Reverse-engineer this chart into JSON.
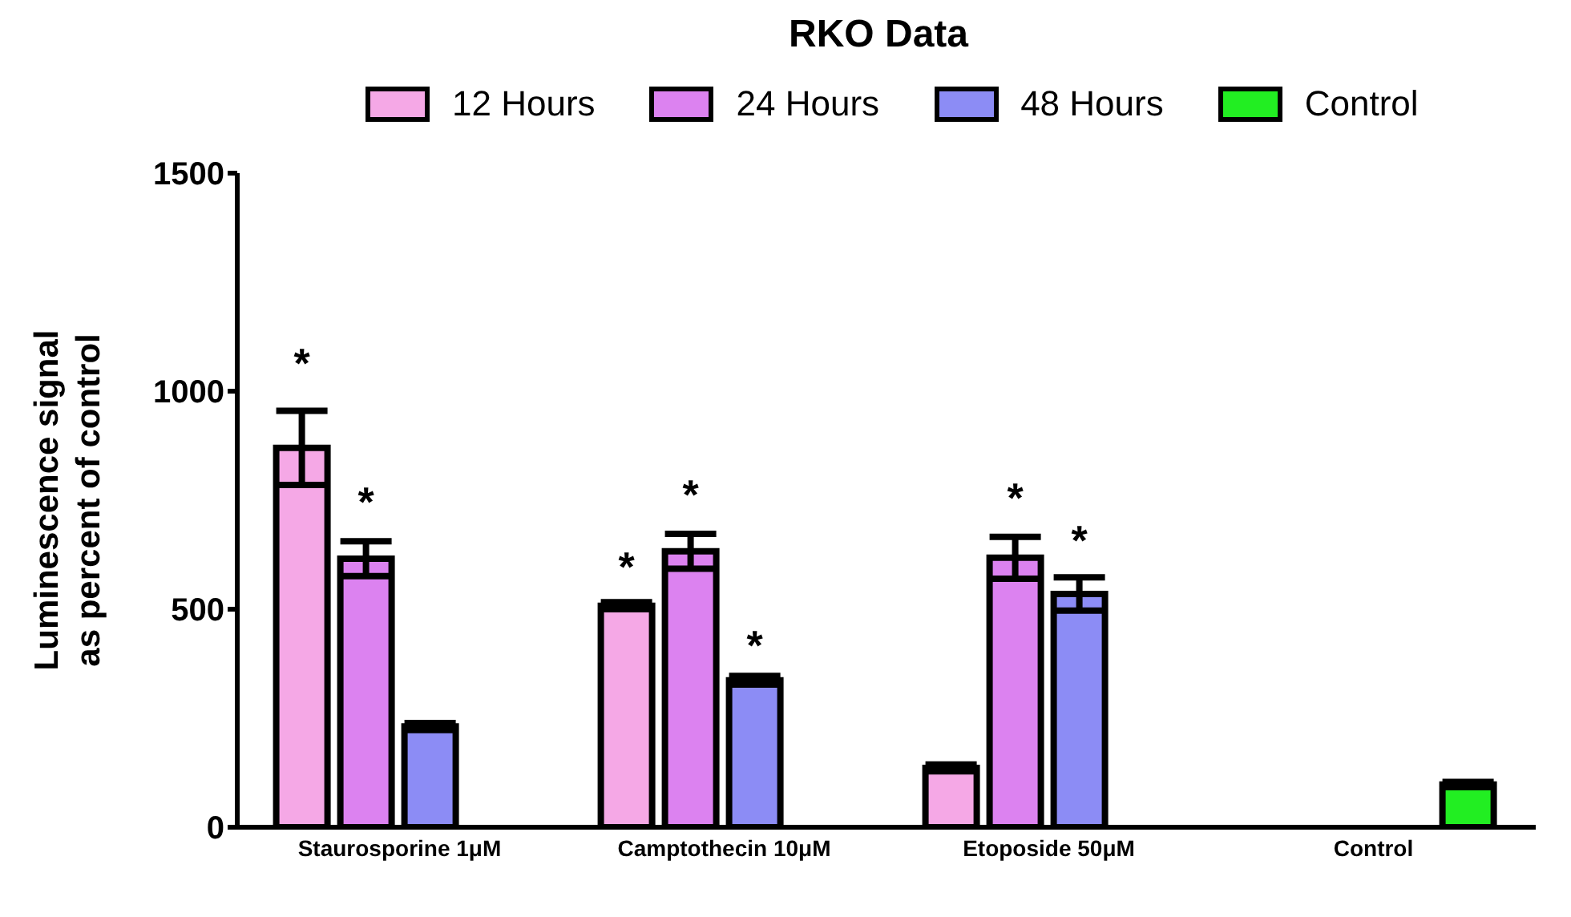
{
  "chart_data": {
    "type": "bar",
    "title": "RKO Data",
    "ylabel": "Luminescence signal as percent of control",
    "categories": [
      "Staurosporine 1μM",
      "Camptothecin 10μM",
      "Etoposide 50μM",
      "Control"
    ],
    "series": [
      {
        "name": "12 Hours",
        "color": "#f5a8e6",
        "values": [
          870,
          508,
          136,
          null
        ],
        "errors": [
          85,
          8,
          8,
          null
        ],
        "value_labels": [
          "*",
          "*",
          null,
          null
        ]
      },
      {
        "name": "24 Hours",
        "color": "#dc82f0",
        "values": [
          616,
          633,
          618,
          null
        ],
        "errors": [
          40,
          40,
          48,
          null
        ],
        "value_labels": [
          "*",
          "*",
          "*",
          null
        ]
      },
      {
        "name": "48 Hours",
        "color": "#8c8cf5",
        "values": [
          231,
          337,
          535,
          null
        ],
        "errors": [
          8,
          10,
          38,
          null
        ],
        "value_labels": [
          null,
          "*",
          "*",
          null
        ]
      },
      {
        "name": "Control",
        "color": "#22ee22",
        "values": [
          null,
          null,
          null,
          98
        ],
        "errors": [
          null,
          null,
          null,
          6
        ]
      }
    ],
    "ylim": [
      0,
      1500
    ],
    "yticks": [
      0,
      500,
      1000,
      1500
    ],
    "grid": false,
    "legend": "top"
  }
}
